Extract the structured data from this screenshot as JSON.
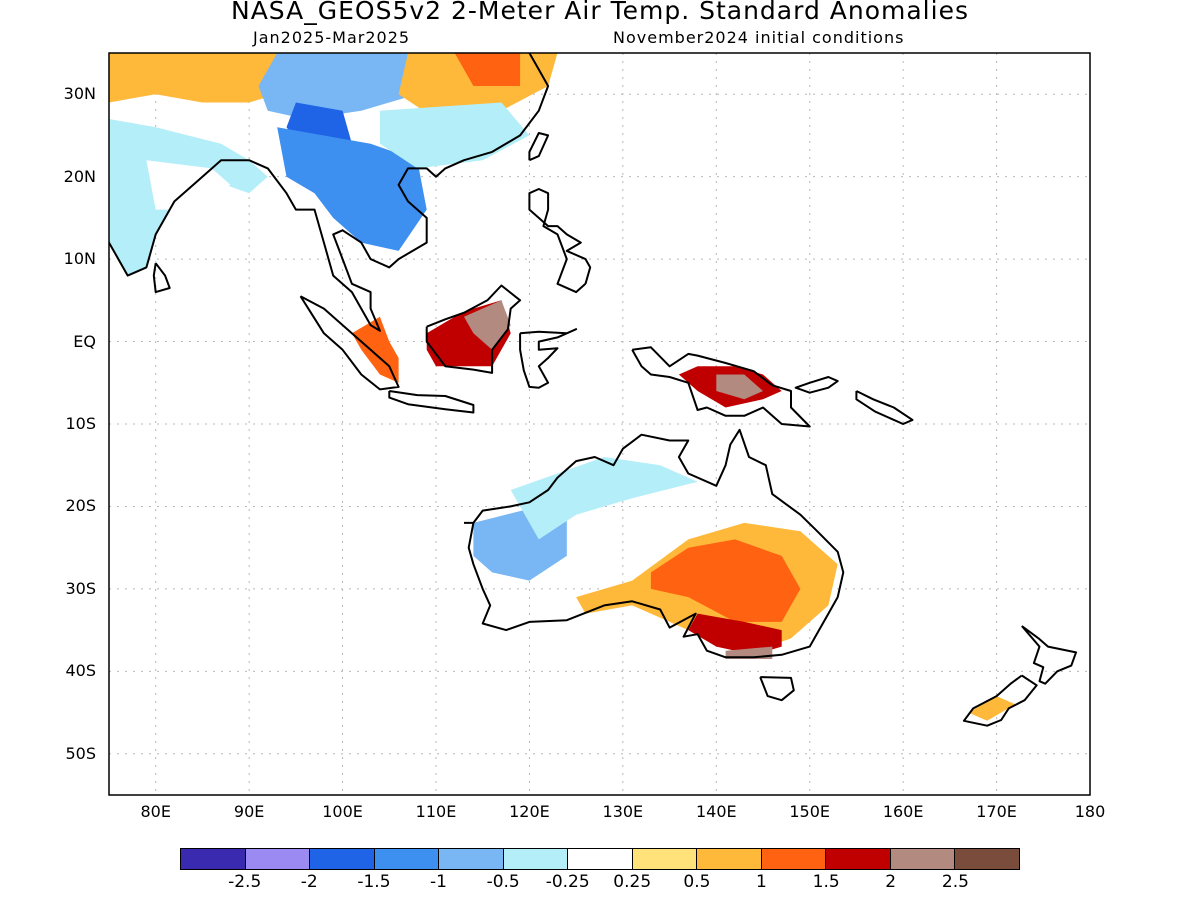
{
  "title": "NASA_GEOS5v2 2-Meter Air Temp. Standard Anomalies",
  "subtitle_left": "Jan2025-Mar2025",
  "subtitle_right": "November2024 initial conditions",
  "lat_ticks": [
    "30N",
    "20N",
    "10N",
    "EQ",
    "10S",
    "20S",
    "30S",
    "40S",
    "50S"
  ],
  "lon_ticks": [
    "80E",
    "90E",
    "100E",
    "110E",
    "120E",
    "130E",
    "140E",
    "150E",
    "160E",
    "170E",
    "180"
  ],
  "colorbar": {
    "colors": [
      "#3a2ab0",
      "#9b8af2",
      "#1f63e6",
      "#3d8ff0",
      "#78b6f4",
      "#b4eef8",
      "#ffffff",
      "#ffe27a",
      "#ffb93a",
      "#ff6210",
      "#c00000",
      "#b38a80",
      "#7a4c3c"
    ],
    "labels": [
      "-2.5",
      "-2",
      "-1.5",
      "-1",
      "-0.5",
      "-0.25",
      "0.25",
      "0.5",
      "1",
      "1.5",
      "2",
      "2.5"
    ]
  },
  "map_extent": {
    "lon": [
      75,
      180
    ],
    "lat": [
      -55,
      35
    ]
  },
  "anomaly_regions": [
    {
      "name": "arabian-sea-coast-india",
      "value": -0.5
    },
    {
      "name": "india-central",
      "value": -0.25
    },
    {
      "name": "tibet-west",
      "value": 0.5
    },
    {
      "name": "tibet-east",
      "value": -1
    },
    {
      "name": "myanmar-yunnan",
      "value": -2
    },
    {
      "name": "indochina",
      "value": -1.5
    },
    {
      "name": "china-north",
      "value": 0.5
    },
    {
      "name": "china-north-core",
      "value": 1
    },
    {
      "name": "china-south",
      "value": -0.5
    },
    {
      "name": "borneo",
      "value": 1.5
    },
    {
      "name": "borneo-core",
      "value": 2
    },
    {
      "name": "sumatra",
      "value": 1
    },
    {
      "name": "new-guinea",
      "value": 1.5
    },
    {
      "name": "new-guinea-core",
      "value": 2
    },
    {
      "name": "australia-west",
      "value": -1
    },
    {
      "name": "australia-northwest",
      "value": -0.5
    },
    {
      "name": "australia-southeast",
      "value": 0.5
    },
    {
      "name": "australia-southeast-inner",
      "value": 1
    },
    {
      "name": "victoria",
      "value": 1.5
    },
    {
      "name": "victoria-coast",
      "value": 2
    },
    {
      "name": "new-zealand-south",
      "value": 0.5
    }
  ]
}
